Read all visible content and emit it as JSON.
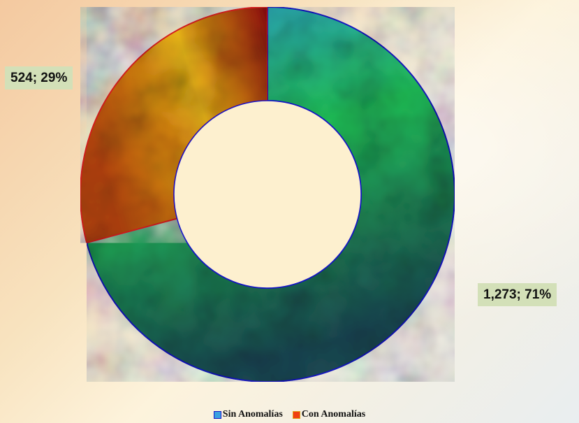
{
  "chart_data": {
    "type": "pie",
    "donut": true,
    "categories": [
      "Sin Anomalías",
      "Con Anomalías"
    ],
    "values": [
      1273,
      524
    ],
    "percentages": [
      71,
      29
    ],
    "data_labels": [
      "1,273; 71%",
      "524; 29%"
    ],
    "legend_placement": "bottom",
    "colors": {
      "sin_anomalias_fill_a": "#2f9fdc",
      "sin_anomalias_fill_b": "#22c25a",
      "sin_anomalias_fill_c": "#1c4a55",
      "sin_anomalias_border": "#1515c8",
      "con_anomalias_fill_a": "#f0b818",
      "con_anomalias_fill_b": "#b8460e",
      "con_anomalias_fill_c": "#8c0a0a",
      "con_anomalias_border": "#e02020"
    }
  },
  "legend": {
    "items": [
      {
        "label": "Sin Anomalías",
        "swatch_color": "#3aa0e0",
        "swatch_border": "#1515c8"
      },
      {
        "label": "Con Anomalías",
        "swatch_color": "#f04010",
        "swatch_border": "#e0a010"
      }
    ]
  }
}
